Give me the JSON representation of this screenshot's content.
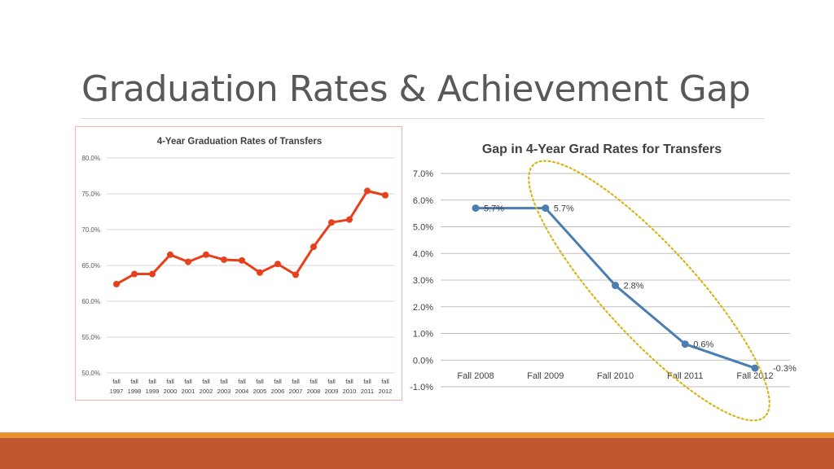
{
  "slide": {
    "title": "Graduation Rates & Achievement Gap"
  },
  "colors": {
    "chart1_line": "#e8401c",
    "chart2_line": "#4a7db0",
    "highlight_ellipse": "#d9b51a",
    "footer_band": "#c0572e",
    "footer_accent": "#e8902f"
  },
  "chart_data": [
    {
      "type": "line",
      "title": "4-Year Graduation Rates of Transfers",
      "categories": [
        [
          "fall",
          "1997"
        ],
        [
          "fall",
          "1998"
        ],
        [
          "fall",
          "1999"
        ],
        [
          "fall",
          "2000"
        ],
        [
          "fall",
          "2001"
        ],
        [
          "fall",
          "2002"
        ],
        [
          "fall",
          "2003"
        ],
        [
          "fall",
          "2004"
        ],
        [
          "fall",
          "2005"
        ],
        [
          "fall",
          "2006"
        ],
        [
          "fall",
          "2007"
        ],
        [
          "fall",
          "2008"
        ],
        [
          "fall",
          "2009"
        ],
        [
          "fall",
          "2010"
        ],
        [
          "fall",
          "2011"
        ],
        [
          "fall",
          "2012"
        ]
      ],
      "values": [
        62.4,
        63.8,
        63.8,
        66.5,
        65.5,
        66.5,
        65.8,
        65.7,
        64.0,
        65.2,
        63.7,
        67.6,
        71.0,
        71.4,
        75.4,
        74.8
      ],
      "ylim": [
        50,
        80
      ],
      "yticks": [
        "50.0%",
        "55.0%",
        "60.0%",
        "65.0%",
        "70.0%",
        "75.0%",
        "80.0%"
      ],
      "grid": true
    },
    {
      "type": "line",
      "title": "Gap in 4-Year Grad Rates for Transfers",
      "categories": [
        "Fall 2008",
        "Fall 2009",
        "Fall 2010",
        "Fall 2011",
        "Fall 2012"
      ],
      "values": [
        5.7,
        5.7,
        2.8,
        0.6,
        -0.3
      ],
      "data_labels": [
        "5.7%",
        "5.7%",
        "2.8%",
        "0.6%",
        "-0.3%"
      ],
      "ylim": [
        -1,
        7
      ],
      "yticks": [
        "-1.0%",
        "0.0%",
        "1.0%",
        "2.0%",
        "3.0%",
        "4.0%",
        "5.0%",
        "6.0%",
        "7.0%"
      ],
      "grid": true,
      "annotation": "dotted ellipse highlighting Fall 2009 to Fall 2012 decline"
    }
  ]
}
